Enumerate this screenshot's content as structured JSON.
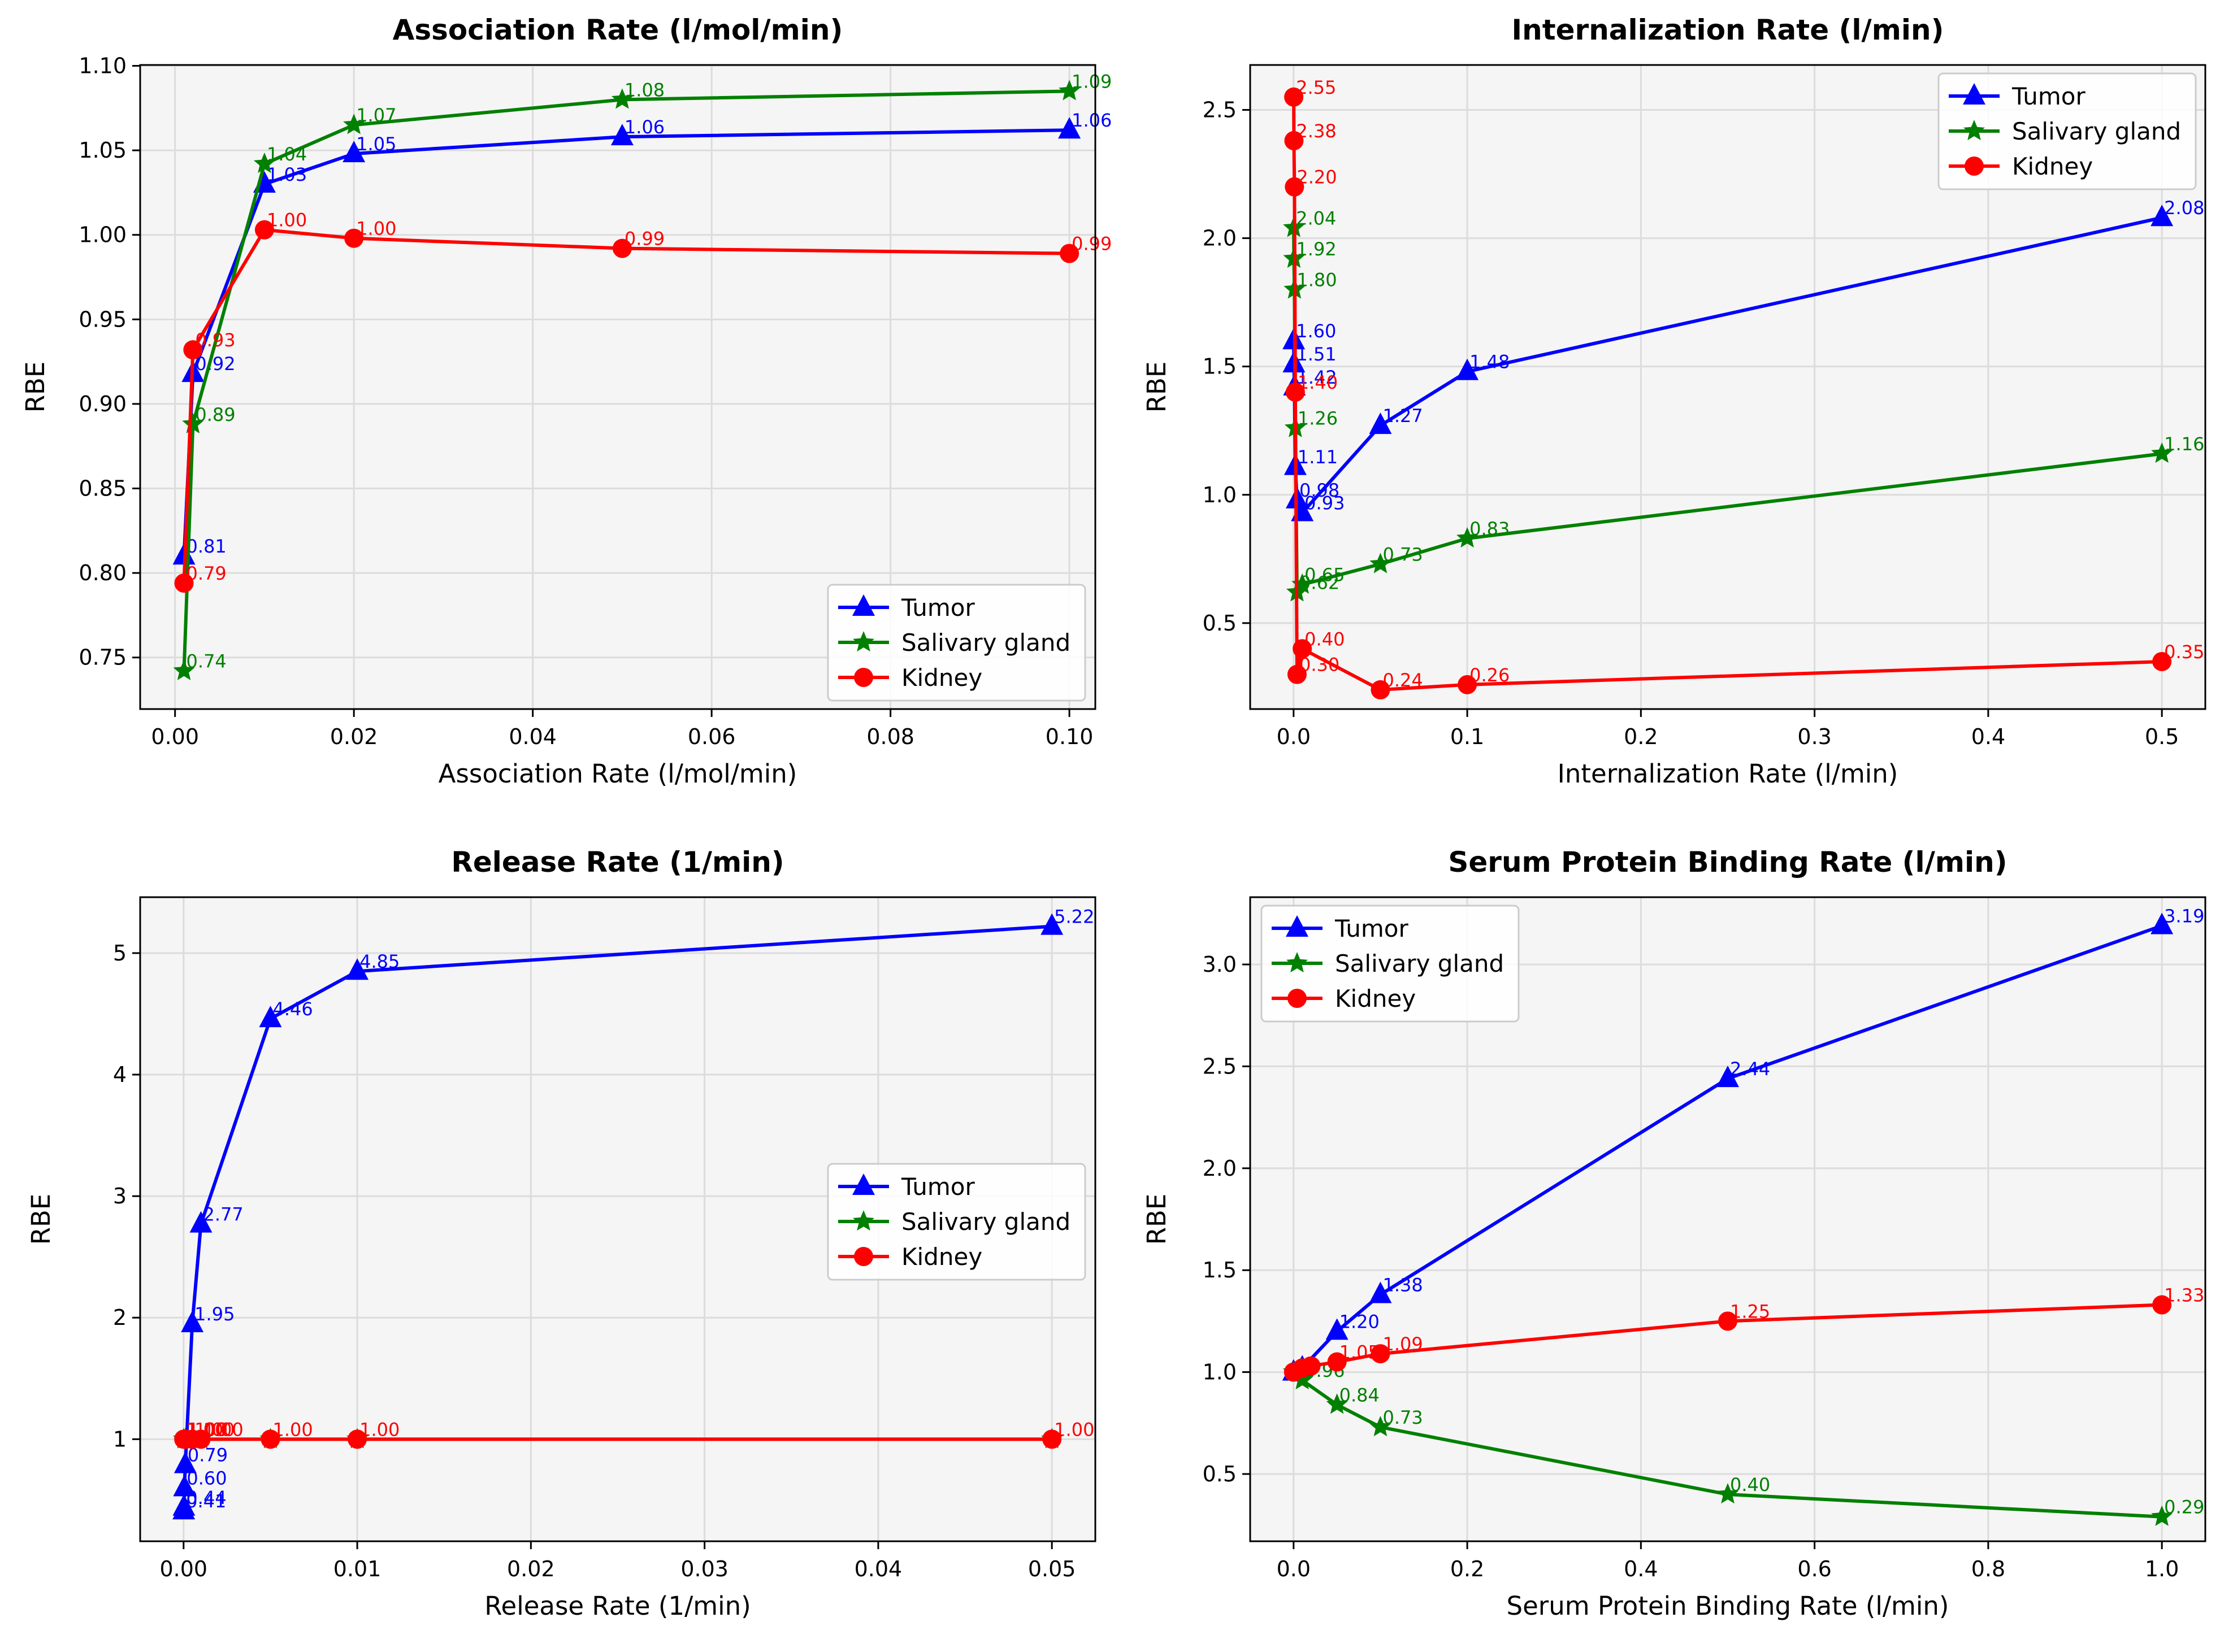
{
  "colors": {
    "Tumor": "#0000ff",
    "Salivary gland": "#008000",
    "Kidney": "#ff0000"
  },
  "chart_data": [
    {
      "type": "line",
      "title": "Association Rate (l/mol/min)",
      "xlabel": "Association Rate (l/mol/min)",
      "ylabel": "RBE",
      "xlim": [
        -0.0039,
        0.1029
      ],
      "ylim": [
        0.7195,
        1.1005
      ],
      "xticks": [
        0.0,
        0.02,
        0.04,
        0.06,
        0.08,
        0.1
      ],
      "xtick_labels": [
        "0.00",
        "0.02",
        "0.04",
        "0.06",
        "0.08",
        "0.10"
      ],
      "yticks": [
        0.75,
        0.8,
        0.85,
        0.9,
        0.95,
        1.0,
        1.05,
        1.1
      ],
      "ytick_labels": [
        "0.75",
        "0.80",
        "0.85",
        "0.90",
        "0.95",
        "1.00",
        "1.05",
        "1.10"
      ],
      "grid": true,
      "legend": "lower-right",
      "series": [
        {
          "name": "Tumor",
          "marker": "triangle",
          "x": [
            0.001,
            0.002,
            0.01,
            0.02,
            0.05,
            0.1
          ],
          "y": [
            0.81,
            0.918,
            1.03,
            1.048,
            1.058,
            1.062
          ],
          "labels": [
            "0.81",
            "0.92",
            "1.03",
            "1.05",
            "1.06",
            "1.06"
          ]
        },
        {
          "name": "Salivary gland",
          "marker": "star",
          "x": [
            0.001,
            0.002,
            0.01,
            0.02,
            0.05,
            0.1
          ],
          "y": [
            0.742,
            0.888,
            1.042,
            1.065,
            1.08,
            1.085
          ],
          "labels": [
            "0.74",
            "0.89",
            "1.04",
            "1.07",
            "1.08",
            "1.09"
          ]
        },
        {
          "name": "Kidney",
          "marker": "circle",
          "x": [
            0.001,
            0.002,
            0.01,
            0.02,
            0.05,
            0.1
          ],
          "y": [
            0.794,
            0.932,
            1.003,
            0.998,
            0.992,
            0.989
          ],
          "labels": [
            "0.79",
            "0.93",
            "1.00",
            "1.00",
            "0.99",
            "0.99"
          ]
        }
      ]
    },
    {
      "type": "line",
      "title": "Internalization Rate (l/min)",
      "xlabel": "Internalization Rate (l/min)",
      "ylabel": "RBE",
      "xlim": [
        -0.025,
        0.525
      ],
      "ylim": [
        0.165,
        2.675
      ],
      "xticks": [
        0.0,
        0.1,
        0.2,
        0.3,
        0.4,
        0.5
      ],
      "xtick_labels": [
        "0.0",
        "0.1",
        "0.2",
        "0.3",
        "0.4",
        "0.5"
      ],
      "yticks": [
        0.5,
        1.0,
        1.5,
        2.0,
        2.5
      ],
      "ytick_labels": [
        "0.5",
        "1.0",
        "1.5",
        "2.0",
        "2.5"
      ],
      "grid": true,
      "legend": "upper-right",
      "series": [
        {
          "name": "Tumor",
          "marker": "triangle",
          "x": [
            0.0001,
            0.0002,
            0.0005,
            0.001,
            0.002,
            0.005,
            0.05,
            0.1,
            0.5
          ],
          "y": [
            1.6,
            1.51,
            1.42,
            1.11,
            0.98,
            0.93,
            1.27,
            1.48,
            2.08
          ],
          "labels": [
            "1.60",
            "1.51",
            "1.42",
            "1.11",
            "0.98",
            "0.93",
            "1.27",
            "1.48",
            "2.08"
          ]
        },
        {
          "name": "Salivary gland",
          "marker": "star",
          "x": [
            0.0001,
            0.0002,
            0.0005,
            0.001,
            0.002,
            0.005,
            0.05,
            0.1,
            0.5
          ],
          "y": [
            2.04,
            1.92,
            1.8,
            1.26,
            0.62,
            0.65,
            0.73,
            0.83,
            1.16
          ],
          "labels": [
            "2.04",
            "1.92",
            "1.80",
            "1.26",
            "0.62",
            "0.65",
            "0.73",
            "0.83",
            "1.16"
          ]
        },
        {
          "name": "Kidney",
          "marker": "circle",
          "x": [
            0.0001,
            0.0002,
            0.0005,
            0.001,
            0.002,
            0.005,
            0.05,
            0.1,
            0.5
          ],
          "y": [
            2.55,
            2.38,
            2.2,
            1.4,
            0.3,
            0.4,
            0.24,
            0.26,
            0.35
          ],
          "labels": [
            "2.55",
            "2.38",
            "2.20",
            "1.40",
            "0.30",
            "0.40",
            "0.24",
            "0.26",
            "0.35"
          ]
        }
      ]
    },
    {
      "type": "line",
      "title": "Release Rate (1/min)",
      "xlabel": "Release Rate (1/min)",
      "ylabel": "RBE",
      "xlim": [
        -0.0025,
        0.0525
      ],
      "ylim": [
        0.16,
        5.46
      ],
      "xticks": [
        0.0,
        0.01,
        0.02,
        0.03,
        0.04,
        0.05
      ],
      "xtick_labels": [
        "0.00",
        "0.01",
        "0.02",
        "0.03",
        "0.04",
        "0.05"
      ],
      "yticks": [
        1,
        2,
        3,
        4,
        5
      ],
      "ytick_labels": [
        "1",
        "2",
        "3",
        "4",
        "5"
      ],
      "grid": true,
      "legend": "center-right",
      "series": [
        {
          "name": "Tumor",
          "marker": "triangle",
          "x": [
            1e-05,
            2e-05,
            5e-05,
            0.0001,
            0.0005,
            0.001,
            0.005,
            0.01,
            0.05
          ],
          "y": [
            0.41,
            0.44,
            0.6,
            0.79,
            1.95,
            2.77,
            4.46,
            4.85,
            5.22
          ],
          "labels": [
            "0.41",
            "0.44",
            "0.60",
            "0.79",
            "1.95",
            "2.77",
            "4.46",
            "4.85",
            "5.22"
          ]
        },
        {
          "name": "Salivary gland",
          "marker": "star",
          "x": [
            1e-05,
            0.0001,
            0.0005,
            0.001,
            0.005,
            0.01,
            0.05
          ],
          "y": [
            1.0,
            1.0,
            1.0,
            1.0,
            1.0,
            1.0,
            1.0
          ],
          "labels": []
        },
        {
          "name": "Kidney",
          "marker": "circle",
          "x": [
            1e-05,
            0.0001,
            0.0005,
            0.001,
            0.005,
            0.01,
            0.05
          ],
          "y": [
            1.0,
            1.0,
            1.0,
            1.0,
            1.0,
            1.0,
            1.0
          ],
          "labels": [
            "1.00",
            "1.00",
            "1.00",
            "1.00",
            "1.00",
            "1.00",
            "1.00"
          ]
        }
      ]
    },
    {
      "type": "line",
      "title": "Serum Protein Binding Rate (l/min)",
      "xlabel": "Serum Protein Binding Rate (l/min)",
      "ylabel": "RBE",
      "xlim": [
        -0.05,
        1.05
      ],
      "ylim": [
        0.17,
        3.33
      ],
      "xticks": [
        0.0,
        0.2,
        0.4,
        0.6,
        0.8,
        1.0
      ],
      "xtick_labels": [
        "0.0",
        "0.2",
        "0.4",
        "0.6",
        "0.8",
        "1.0"
      ],
      "yticks": [
        0.5,
        1.0,
        1.5,
        2.0,
        2.5,
        3.0
      ],
      "ytick_labels": [
        "0.5",
        "1.0",
        "1.5",
        "2.0",
        "2.5",
        "3.0"
      ],
      "grid": true,
      "legend": "upper-left",
      "series": [
        {
          "name": "Tumor",
          "marker": "triangle",
          "x": [
            0.0,
            0.01,
            0.05,
            0.1,
            0.5,
            1.0
          ],
          "y": [
            1.0,
            1.02,
            1.2,
            1.38,
            2.44,
            3.19
          ],
          "labels": [
            "",
            "",
            "1.20",
            "1.38",
            "2.44",
            "3.19"
          ]
        },
        {
          "name": "Salivary gland",
          "marker": "star",
          "x": [
            0.0,
            0.01,
            0.05,
            0.1,
            0.5,
            1.0
          ],
          "y": [
            1.0,
            0.96,
            0.84,
            0.73,
            0.4,
            0.29
          ],
          "labels": [
            "",
            "0.96",
            "0.84",
            "0.73",
            "0.40",
            "0.29"
          ]
        },
        {
          "name": "Kidney",
          "marker": "circle",
          "x": [
            0.0,
            0.01,
            0.02,
            0.05,
            0.1,
            0.5,
            1.0
          ],
          "y": [
            1.0,
            1.02,
            1.03,
            1.05,
            1.09,
            1.25,
            1.33
          ],
          "labels": [
            "",
            "",
            "",
            "1.05",
            "1.09",
            "1.25",
            "1.33"
          ]
        }
      ]
    }
  ]
}
